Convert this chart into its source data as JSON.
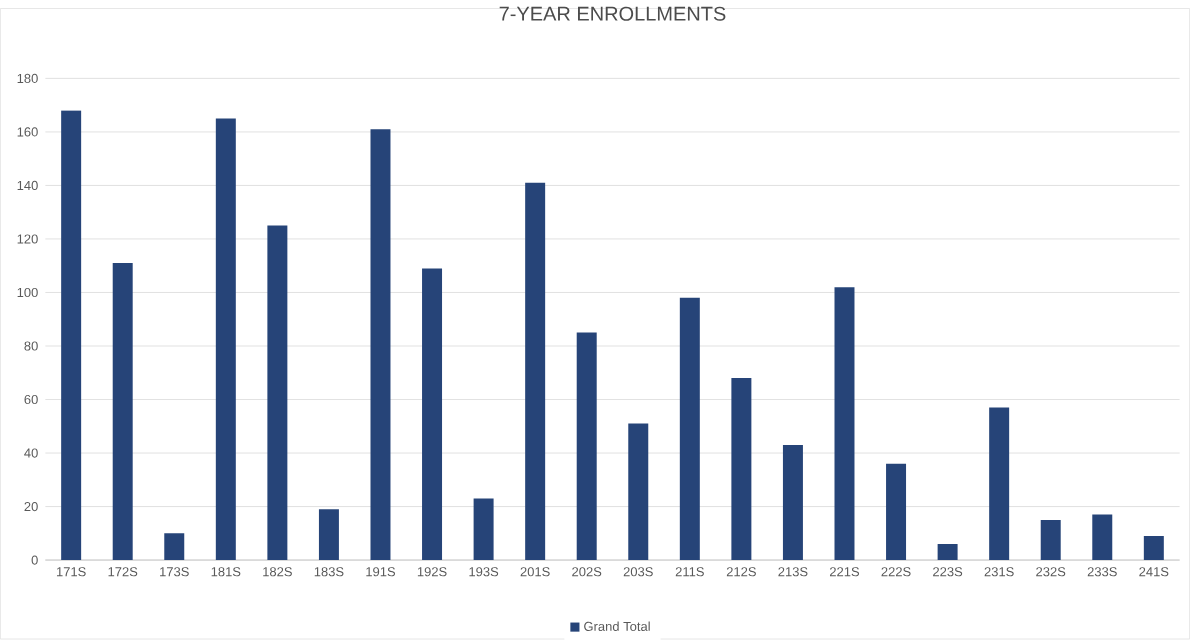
{
  "chart_data": {
    "type": "bar",
    "title": "7-YEAR ENROLLMENTS",
    "categories": [
      "171S",
      "172S",
      "173S",
      "181S",
      "182S",
      "183S",
      "191S",
      "192S",
      "193S",
      "201S",
      "202S",
      "203S",
      "211S",
      "212S",
      "213S",
      "221S",
      "222S",
      "223S",
      "231S",
      "232S",
      "233S",
      "241S"
    ],
    "series": [
      {
        "name": "Grand Total",
        "color": "#264478",
        "values": [
          168,
          111,
          10,
          165,
          125,
          19,
          161,
          109,
          23,
          141,
          85,
          51,
          98,
          68,
          43,
          102,
          36,
          6,
          57,
          15,
          17,
          9
        ]
      }
    ],
    "ylim": [
      0,
      180
    ],
    "yticks": [
      0,
      20,
      40,
      60,
      80,
      100,
      120,
      140,
      160,
      180
    ],
    "grid": "y",
    "legend": "bottom"
  }
}
